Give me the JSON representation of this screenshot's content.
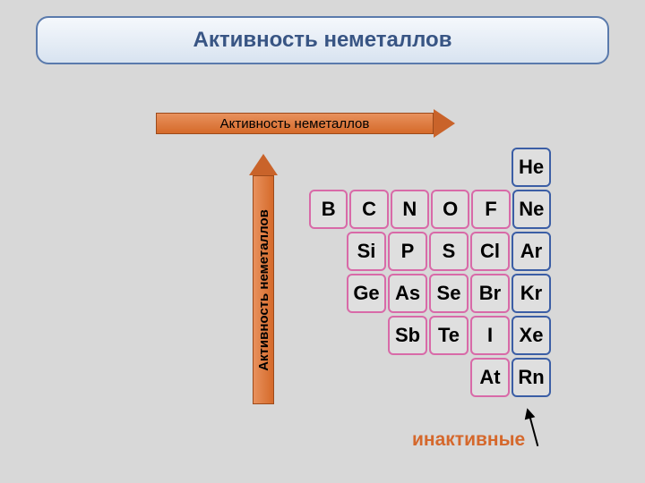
{
  "title": "Активность неметаллов",
  "h_arrow_label": "Активность неметаллов",
  "v_arrow_label": "Активность неметаллов",
  "inactive_label": "инактивные",
  "colors": {
    "title_border": "#5a7aac",
    "title_text": "#385584",
    "arrow_fill": "#d56a2a",
    "arrow_border": "#9c4a1b",
    "inactive_text": "#d5682c",
    "background": "#d8d8d8"
  },
  "table": {
    "rows": [
      {
        "offset": 5,
        "cells": [
          {
            "sym": "He",
            "color": "#3b5ea5"
          }
        ]
      },
      {
        "offset": 0,
        "cells": [
          {
            "sym": "B",
            "color": "#d86aa8"
          },
          {
            "sym": "C",
            "color": "#d86aa8"
          },
          {
            "sym": "N",
            "color": "#d86aa8"
          },
          {
            "sym": "O",
            "color": "#d86aa8"
          },
          {
            "sym": "F",
            "color": "#d86aa8"
          },
          {
            "sym": "Ne",
            "color": "#3b5ea5"
          }
        ]
      },
      {
        "offset": 1,
        "cells": [
          {
            "sym": "Si",
            "color": "#d86aa8"
          },
          {
            "sym": "P",
            "color": "#d86aa8"
          },
          {
            "sym": "S",
            "color": "#d86aa8"
          },
          {
            "sym": "Cl",
            "color": "#d86aa8"
          },
          {
            "sym": "Ar",
            "color": "#3b5ea5"
          }
        ]
      },
      {
        "offset": 1,
        "cells": [
          {
            "sym": "Ge",
            "color": "#d86aa8"
          },
          {
            "sym": "As",
            "color": "#d86aa8"
          },
          {
            "sym": "Se",
            "color": "#d86aa8"
          },
          {
            "sym": "Br",
            "color": "#d86aa8"
          },
          {
            "sym": "Kr",
            "color": "#3b5ea5"
          }
        ]
      },
      {
        "offset": 2,
        "cells": [
          {
            "sym": "Sb",
            "color": "#d86aa8"
          },
          {
            "sym": "Te",
            "color": "#d86aa8"
          },
          {
            "sym": "I",
            "color": "#d86aa8"
          },
          {
            "sym": "Xe",
            "color": "#3b5ea5"
          }
        ]
      },
      {
        "offset": 4,
        "cells": [
          {
            "sym": "At",
            "color": "#d86aa8"
          },
          {
            "sym": "Rn",
            "color": "#3b5ea5"
          }
        ]
      }
    ]
  }
}
